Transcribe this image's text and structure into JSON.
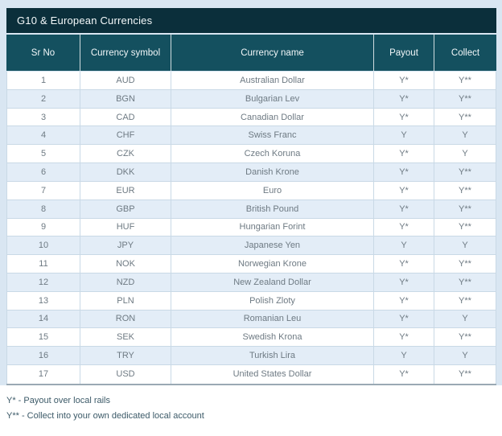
{
  "title": "G10 & European Currencies",
  "table": {
    "headers": [
      "Sr No",
      "Currency symbol",
      "Currency name",
      "Payout",
      "Collect"
    ],
    "rows": [
      {
        "sr": "1",
        "symbol": "AUD",
        "name": "Australian Dollar",
        "payout": "Y*",
        "collect": "Y**"
      },
      {
        "sr": "2",
        "symbol": "BGN",
        "name": "Bulgarian Lev",
        "payout": "Y*",
        "collect": "Y**"
      },
      {
        "sr": "3",
        "symbol": "CAD",
        "name": "Canadian Dollar",
        "payout": "Y*",
        "collect": "Y**"
      },
      {
        "sr": "4",
        "symbol": "CHF",
        "name": "Swiss Franc",
        "payout": "Y",
        "collect": "Y"
      },
      {
        "sr": "5",
        "symbol": "CZK",
        "name": "Czech Koruna",
        "payout": "Y*",
        "collect": "Y"
      },
      {
        "sr": "6",
        "symbol": "DKK",
        "name": "Danish Krone",
        "payout": "Y*",
        "collect": "Y**"
      },
      {
        "sr": "7",
        "symbol": "EUR",
        "name": "Euro",
        "payout": "Y*",
        "collect": "Y**"
      },
      {
        "sr": "8",
        "symbol": "GBP",
        "name": "British Pound",
        "payout": "Y*",
        "collect": "Y**"
      },
      {
        "sr": "9",
        "symbol": "HUF",
        "name": "Hungarian Forint",
        "payout": "Y*",
        "collect": "Y**"
      },
      {
        "sr": "10",
        "symbol": "JPY",
        "name": "Japanese Yen",
        "payout": "Y",
        "collect": "Y"
      },
      {
        "sr": "11",
        "symbol": "NOK",
        "name": "Norwegian Krone",
        "payout": "Y*",
        "collect": "Y**"
      },
      {
        "sr": "12",
        "symbol": "NZD",
        "name": "New Zealand Dollar",
        "payout": "Y*",
        "collect": "Y**"
      },
      {
        "sr": "13",
        "symbol": "PLN",
        "name": "Polish Zloty",
        "payout": "Y*",
        "collect": "Y**"
      },
      {
        "sr": "14",
        "symbol": "RON",
        "name": "Romanian Leu",
        "payout": "Y*",
        "collect": "Y"
      },
      {
        "sr": "15",
        "symbol": "SEK",
        "name": "Swedish Krona",
        "payout": "Y*",
        "collect": "Y**"
      },
      {
        "sr": "16",
        "symbol": "TRY",
        "name": "Turkish Lira",
        "payout": "Y",
        "collect": "Y"
      },
      {
        "sr": "17",
        "symbol": "USD",
        "name": "United States Dollar",
        "payout": "Y*",
        "collect": "Y**"
      }
    ]
  },
  "footnotes": [
    "Y* - Payout over local rails",
    "Y** - Collect into your own dedicated local account"
  ],
  "colors": {
    "title_bar_bg": "#0b2f3b",
    "header_bg": "#14505f",
    "row_stripe": "#e3edf7",
    "page_band": "#d9e6f2",
    "cell_border": "#c9d9e6",
    "table_bottom_border": "#9aa9b4",
    "cell_text": "#6e7a83",
    "header_text": "#f2f7f9",
    "footnote_text": "#3c5a68"
  }
}
